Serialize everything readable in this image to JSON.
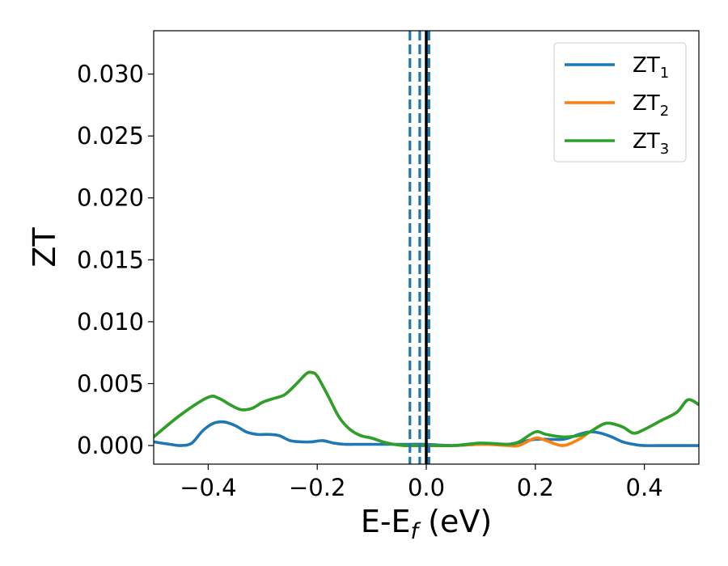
{
  "chart_data": {
    "type": "line",
    "xlabel": "E-E",
    "xlabel_sub": "f",
    "xlabel_suffix": " (eV)",
    "ylabel": "ZT",
    "xlim": [
      -0.5,
      0.5
    ],
    "ylim": [
      -0.0015,
      0.0335
    ],
    "xticks": [
      -0.4,
      -0.2,
      0.0,
      0.2,
      0.4
    ],
    "xtick_labels": [
      "−0.4",
      "−0.2",
      "0.0",
      "0.2",
      "0.4"
    ],
    "yticks": [
      0.0,
      0.005,
      0.01,
      0.015,
      0.02,
      0.025,
      0.03
    ],
    "ytick_labels": [
      "0.000",
      "0.005",
      "0.010",
      "0.015",
      "0.020",
      "0.025",
      "0.030"
    ],
    "grid": false,
    "legend_position": "top-right",
    "vertical_lines": [
      {
        "x": -0.03,
        "style": "dashed",
        "color": "#1f77b4"
      },
      {
        "x": -0.012,
        "style": "dashed",
        "color": "#1f77b4"
      },
      {
        "x": 0.005,
        "style": "dashed",
        "color": "#1f77b4"
      },
      {
        "x": 0.0,
        "style": "solid",
        "color": "#000000"
      }
    ],
    "series": [
      {
        "name": "ZT",
        "name_sub": "1",
        "color": "#1f77b4",
        "x": [
          -0.5,
          -0.47,
          -0.45,
          -0.43,
          -0.41,
          -0.39,
          -0.37,
          -0.35,
          -0.33,
          -0.31,
          -0.29,
          -0.27,
          -0.25,
          -0.23,
          -0.21,
          -0.19,
          -0.17,
          -0.15,
          -0.13,
          -0.11,
          -0.09,
          -0.07,
          -0.05,
          -0.03,
          0.0,
          0.05,
          0.1,
          0.15,
          0.2,
          0.25,
          0.28,
          0.3,
          0.32,
          0.34,
          0.36,
          0.38,
          0.4,
          0.45,
          0.5
        ],
        "y": [
          0.0003,
          0.0001,
          0.0,
          0.0002,
          0.0012,
          0.0018,
          0.0019,
          0.0016,
          0.0011,
          0.0009,
          0.0009,
          0.0008,
          0.0004,
          0.0003,
          0.0003,
          0.0004,
          0.0002,
          0.0001,
          0.0001,
          0.0001,
          0.0001,
          0.0001,
          0.0001,
          0.0001,
          0.0001,
          0.0,
          0.0001,
          0.0001,
          0.0005,
          0.0005,
          0.0009,
          0.0011,
          0.001,
          0.0007,
          0.0003,
          0.0001,
          0.0,
          0.0,
          0.0
        ]
      },
      {
        "name": "ZT",
        "name_sub": "2",
        "color": "#ff7f0e",
        "x": [
          -0.5,
          -0.45,
          -0.4,
          -0.38,
          -0.36,
          -0.34,
          -0.32,
          -0.3,
          -0.28,
          -0.26,
          -0.24,
          -0.22,
          -0.21,
          -0.2,
          -0.18,
          -0.16,
          -0.14,
          -0.12,
          -0.1,
          -0.08,
          -0.06,
          -0.04,
          -0.02,
          0.0,
          0.05,
          0.1,
          0.15,
          0.17,
          0.2,
          0.22,
          0.25,
          0.28,
          0.3,
          0.33,
          0.36,
          0.38,
          0.4,
          0.43,
          0.46,
          0.48,
          0.5
        ],
        "y": [
          0.0007,
          0.0025,
          0.0039,
          0.0038,
          0.0033,
          0.0029,
          0.003,
          0.0035,
          0.0038,
          0.0041,
          0.0049,
          0.0058,
          0.0059,
          0.0056,
          0.004,
          0.0023,
          0.0013,
          0.0008,
          0.0006,
          0.0003,
          0.0001,
          0.0,
          0.0,
          0.0,
          0.0,
          0.0001,
          0.0,
          0.0,
          0.0006,
          0.0004,
          0.0,
          0.0005,
          0.0011,
          0.0018,
          0.0015,
          0.001,
          0.0013,
          0.002,
          0.0027,
          0.0037,
          0.0033
        ]
      },
      {
        "name": "ZT",
        "name_sub": "3",
        "color": "#2ca02c",
        "x": [
          -0.5,
          -0.45,
          -0.4,
          -0.38,
          -0.36,
          -0.34,
          -0.32,
          -0.3,
          -0.28,
          -0.26,
          -0.24,
          -0.22,
          -0.21,
          -0.2,
          -0.18,
          -0.16,
          -0.14,
          -0.12,
          -0.1,
          -0.08,
          -0.06,
          -0.04,
          -0.02,
          0.0,
          0.05,
          0.1,
          0.15,
          0.17,
          0.2,
          0.22,
          0.25,
          0.28,
          0.3,
          0.33,
          0.36,
          0.38,
          0.4,
          0.43,
          0.46,
          0.48,
          0.5
        ],
        "y": [
          0.0007,
          0.0025,
          0.0039,
          0.0038,
          0.0033,
          0.0029,
          0.003,
          0.0035,
          0.0038,
          0.0041,
          0.0049,
          0.0058,
          0.0059,
          0.0056,
          0.004,
          0.0023,
          0.0013,
          0.0008,
          0.0006,
          0.0003,
          0.0001,
          0.0,
          0.0,
          0.0,
          0.0,
          0.0002,
          0.0001,
          0.0003,
          0.0011,
          0.0009,
          0.0007,
          0.0008,
          0.0011,
          0.0018,
          0.0015,
          0.001,
          0.0013,
          0.002,
          0.0027,
          0.0037,
          0.0033
        ]
      }
    ]
  }
}
